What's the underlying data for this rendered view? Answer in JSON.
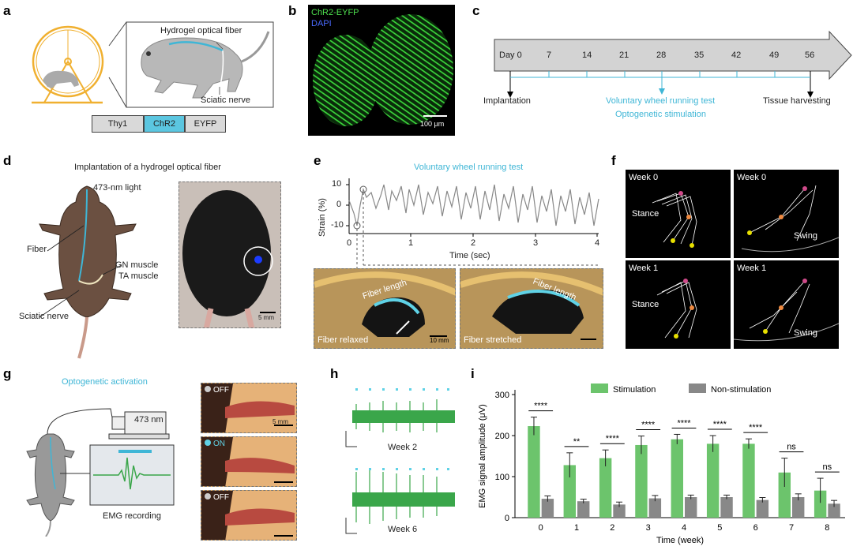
{
  "panels": {
    "a": {
      "label": "a",
      "fiber_label": "Hydrogel optical fiber",
      "nerve_label": "Sciatic nerve",
      "construct": [
        "Thy1",
        "ChR2",
        "EYFP"
      ]
    },
    "b": {
      "label": "b",
      "stain1": "ChR2-EYFP",
      "stain2": "DAPI",
      "scale": "100 μm"
    },
    "c": {
      "label": "c",
      "days": [
        "Day 0",
        "7",
        "14",
        "21",
        "28",
        "35",
        "42",
        "49",
        "56"
      ],
      "implant": "Implantation",
      "test": "Voluntary wheel running test",
      "stim": "Optogenetic stimulation",
      "harvest": "Tissue harvesting"
    },
    "d": {
      "label": "d",
      "title": "Implantation of a hydrogel optical fiber",
      "light": "473-nm light",
      "fiber": "Fiber",
      "gn": "GN muscle",
      "ta": "TA muscle",
      "sciatic": "Sciatic nerve",
      "scale": "5 mm"
    },
    "e": {
      "label": "e",
      "title": "Voluntary wheel running test",
      "ylabel": "Strain (%)",
      "xlabel": "Time (sec)",
      "yticks": [
        "10",
        "0",
        "-10"
      ],
      "xticks": [
        "0",
        "1",
        "2",
        "3",
        "4"
      ],
      "relaxed": "Fiber relaxed",
      "stretched": "Fiber stretched",
      "fiber_length": "Fiber length",
      "scale": "10 mm"
    },
    "f": {
      "label": "f",
      "tiles": [
        {
          "week": "Week 0",
          "phase": "Stance"
        },
        {
          "week": "Week 0",
          "phase": "Swing"
        },
        {
          "week": "Week 1",
          "phase": "Stance"
        },
        {
          "week": "Week 1",
          "phase": "Swing"
        }
      ]
    },
    "g": {
      "label": "g",
      "title": "Optogenetic activation",
      "laser": "473 nm",
      "emg": "EMG recording",
      "states": [
        "OFF",
        "ON",
        "OFF"
      ],
      "scale": "5 mm"
    },
    "h": {
      "label": "h",
      "weeks": [
        "Week 2",
        "Week 6"
      ]
    },
    "i": {
      "label": "i"
    }
  },
  "chart_data": {
    "type": "bar",
    "title": "",
    "xlabel": "Time (week)",
    "ylabel": "EMG signal amplitude (μV)",
    "ylim": [
      0,
      300
    ],
    "yticks": [
      0,
      100,
      200,
      300
    ],
    "categories": [
      "0",
      "1",
      "2",
      "3",
      "4",
      "5",
      "6",
      "7",
      "8"
    ],
    "legend_position": "top",
    "series": [
      {
        "name": "Stimulation",
        "color": "#6cc46c",
        "values": [
          223,
          128,
          145,
          177,
          191,
          180,
          180,
          110,
          66
        ],
        "errors": [
          22,
          30,
          20,
          22,
          12,
          20,
          12,
          35,
          30
        ]
      },
      {
        "name": "Non-stimulation",
        "color": "#888888",
        "values": [
          46,
          40,
          32,
          47,
          50,
          50,
          43,
          50,
          34
        ],
        "errors": [
          7,
          5,
          6,
          7,
          5,
          5,
          6,
          8,
          8
        ]
      }
    ],
    "significance": [
      "****",
      "**",
      "****",
      "****",
      "****",
      "****",
      "****",
      "ns",
      "ns"
    ]
  },
  "colors": {
    "cyan": "#3fb6d6",
    "green": "#6cc46c",
    "gray": "#888888",
    "orange": "#f0b030"
  }
}
